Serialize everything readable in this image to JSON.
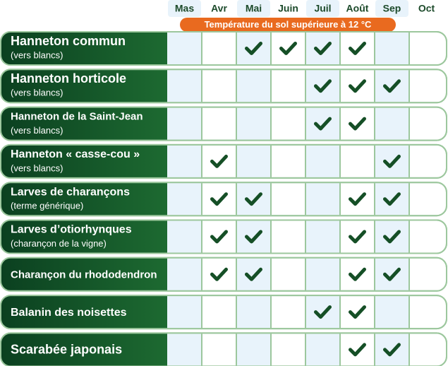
{
  "months": [
    "Mas",
    "Avr",
    "Mai",
    "Juin",
    "Juil",
    "Août",
    "Sep",
    "Oct"
  ],
  "banner": "Température du sol supérieure à 12 °C",
  "rows": [
    {
      "name": "Hanneton commun",
      "subtitle": "(vers blancs)",
      "checks": [
        false,
        false,
        true,
        true,
        true,
        true,
        false,
        false
      ]
    },
    {
      "name": "Hanneton horticole",
      "subtitle": "(vers blancs)",
      "checks": [
        false,
        false,
        false,
        false,
        true,
        true,
        true,
        false
      ]
    },
    {
      "name": "Hanneton de la Saint-Jean",
      "subtitle": "(vers blancs)",
      "checks": [
        false,
        false,
        false,
        false,
        true,
        true,
        false,
        false
      ]
    },
    {
      "name": "Hanneton « casse-cou »",
      "subtitle": "(vers blancs)",
      "checks": [
        false,
        true,
        false,
        false,
        false,
        false,
        true,
        false
      ]
    },
    {
      "name": "Larves de charançons",
      "subtitle": "(terme générique)",
      "checks": [
        false,
        true,
        true,
        false,
        false,
        true,
        true,
        false
      ]
    },
    {
      "name": "Larves d’otiorhynques",
      "subtitle": "(charançon de la vigne)",
      "checks": [
        false,
        true,
        true,
        false,
        false,
        true,
        true,
        false
      ]
    },
    {
      "name": "Charançon du rhododendron",
      "checks": [
        false,
        true,
        true,
        false,
        false,
        true,
        true,
        false
      ]
    },
    {
      "name": "Balanin des noisettes",
      "checks": [
        false,
        false,
        false,
        false,
        true,
        true,
        false,
        false
      ]
    },
    {
      "name": "Scarabée japonais",
      "checks": [
        false,
        false,
        false,
        false,
        false,
        true,
        true,
        false
      ]
    }
  ]
}
